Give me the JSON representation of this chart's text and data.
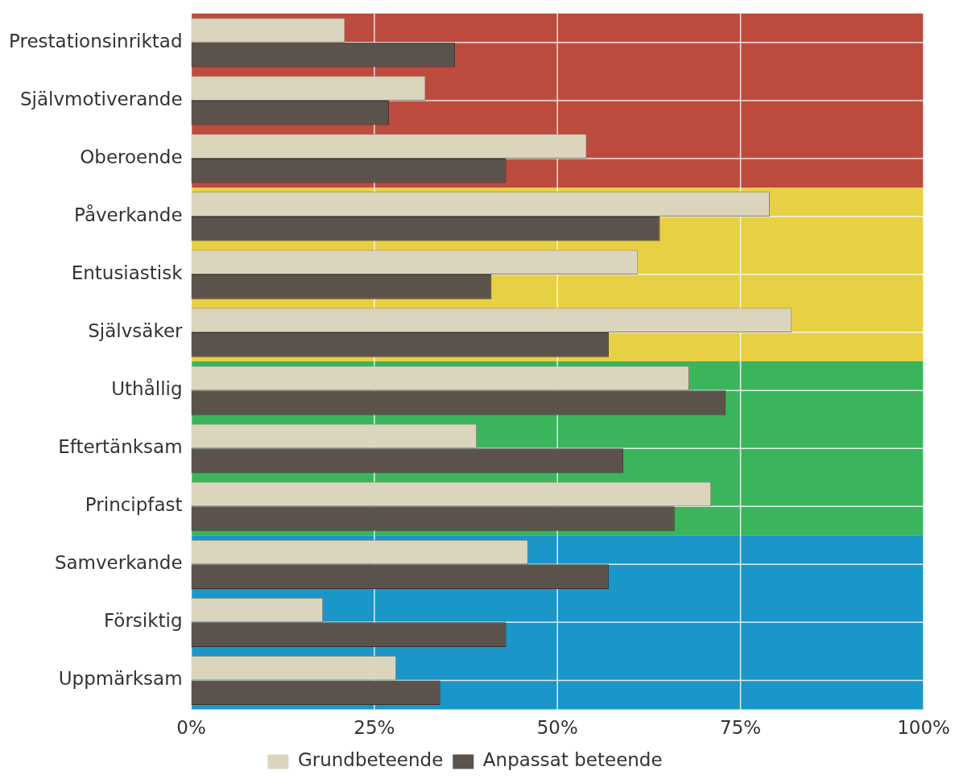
{
  "chart_data": {
    "type": "bar",
    "orientation": "horizontal",
    "categories": [
      "Prestationsinriktad",
      "Självmotiverande",
      "Oberoende",
      "Påverkande",
      "Entusiastisk",
      "Självsäker",
      "Uthållig",
      "Eftertänksam",
      "Principfast",
      "Samverkande",
      "Försiktig",
      "Uppmärksam"
    ],
    "series": [
      {
        "name": "Grundbeteende",
        "color": "#dcd5bd",
        "values": [
          21,
          32,
          54,
          79,
          61,
          82,
          68,
          39,
          71,
          46,
          18,
          28
        ]
      },
      {
        "name": "Anpassat beteende",
        "color": "#5c524c",
        "values": [
          36,
          27,
          43,
          64,
          41,
          57,
          73,
          59,
          66,
          57,
          43,
          34
        ]
      }
    ],
    "xlim": [
      0,
      100
    ],
    "xticks": [
      {
        "value": 0,
        "label": "0%"
      },
      {
        "value": 25,
        "label": "25%"
      },
      {
        "value": 50,
        "label": "50%"
      },
      {
        "value": 75,
        "label": "75%"
      },
      {
        "value": 100,
        "label": "100%"
      }
    ],
    "bands": [
      {
        "axis": "y",
        "from": "Prestationsinriktad",
        "to": "Oberoende",
        "color": "#bd4b3e"
      },
      {
        "axis": "y",
        "from": "Påverkande",
        "to": "Självsäker",
        "color": "#e8d044"
      },
      {
        "axis": "y",
        "from": "Uthållig",
        "to": "Principfast",
        "color": "#3bb55c"
      },
      {
        "axis": "y",
        "from": "Samverkande",
        "to": "Uppmärksam",
        "color": "#1a96c8"
      }
    ],
    "grid": true,
    "legend": "bottom"
  }
}
